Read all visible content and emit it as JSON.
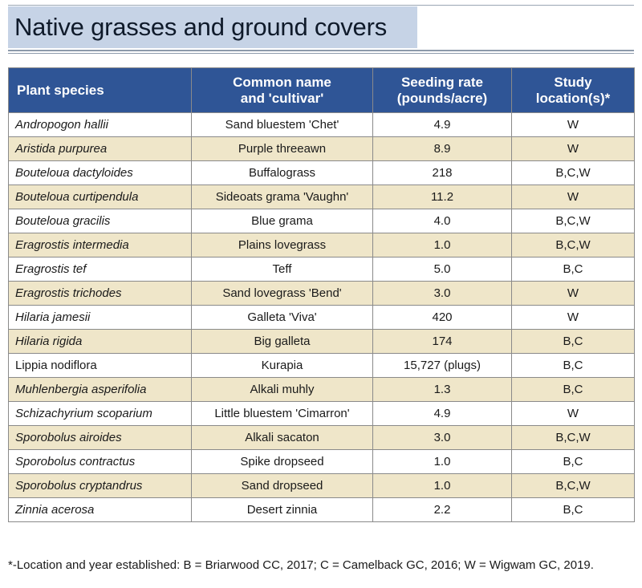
{
  "title": "Native grasses and ground covers",
  "table": {
    "headers": {
      "species": "Plant species",
      "common_line1": "Common name",
      "common_line2": "and 'cultivar'",
      "rate_line1": "Seeding rate",
      "rate_line2": "(pounds/acre)",
      "loc_line1": "Study",
      "loc_line2": "location(s)*"
    },
    "rows": [
      {
        "species": "Andropogon hallii",
        "common": "Sand bluestem 'Chet'",
        "rate": "4.9",
        "location": "W"
      },
      {
        "species": "Aristida purpurea",
        "common": "Purple threeawn",
        "rate": "8.9",
        "location": "W"
      },
      {
        "species": "Bouteloua dactyloides",
        "common": "Buffalograss",
        "rate": "218",
        "location": "B,C,W"
      },
      {
        "species": "Bouteloua curtipendula",
        "common": "Sideoats grama 'Vaughn'",
        "rate": "11.2",
        "location": "W"
      },
      {
        "species": "Bouteloua gracilis",
        "common": "Blue grama",
        "rate": "4.0",
        "location": "B,C,W"
      },
      {
        "species": "Eragrostis intermedia",
        "common": "Plains lovegrass",
        "rate": "1.0",
        "location": "B,C,W"
      },
      {
        "species": "Eragrostis tef",
        "common": "Teff",
        "rate": "5.0",
        "location": "B,C"
      },
      {
        "species": "Eragrostis trichodes",
        "common": "Sand lovegrass 'Bend'",
        "rate": "3.0",
        "location": "W"
      },
      {
        "species": "Hilaria jamesii",
        "common": "Galleta 'Viva'",
        "rate": "420",
        "location": "W"
      },
      {
        "species": "Hilaria rigida",
        "common": "Big galleta",
        "rate": "174",
        "location": "B,C"
      },
      {
        "species": "Lippia nodiflora",
        "common": "Kurapia",
        "rate": "15,727 (plugs)",
        "location": "B,C"
      },
      {
        "species": "Muhlenbergia asperifolia",
        "common": "Alkali muhly",
        "rate": "1.3",
        "location": "B,C"
      },
      {
        "species": "Schizachyrium scoparium",
        "common": "Little bluestem 'Cimarron'",
        "rate": "4.9",
        "location": "W"
      },
      {
        "species": "Sporobolus airoides",
        "common": "Alkali sacaton",
        "rate": "3.0",
        "location": "B,C,W"
      },
      {
        "species": "Sporobolus contractus",
        "common": "Spike dropseed",
        "rate": "1.0",
        "location": "B,C"
      },
      {
        "species": "Sporobolus cryptandrus",
        "common": "Sand dropseed",
        "rate": "1.0",
        "location": "B,C,W"
      },
      {
        "species": "Zinnia acerosa",
        "common": "Desert zinnia",
        "rate": "2.2",
        "location": "B,C"
      }
    ]
  },
  "footnote": "*-Location and year established: B = Briarwood CC, 2017; C = Camelback GC, 2016; W = Wigwam GC, 2019.",
  "colors": {
    "header_bg": "#2f5596",
    "shaded_row": "#efe6c9",
    "title_box": "#c6d3e6"
  }
}
